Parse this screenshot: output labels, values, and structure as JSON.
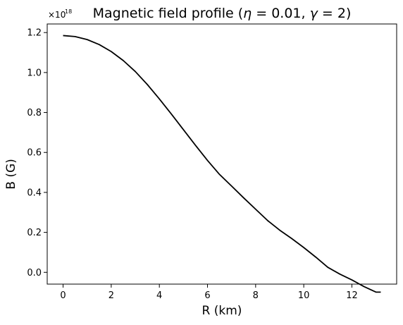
{
  "chart_data": {
    "type": "line",
    "title_prefix": "Magnetic field profile (",
    "title_eta": "η",
    "title_eq1": " = 0.01, ",
    "title_gamma": "γ",
    "title_eq2": " = 2)",
    "xlabel": "R (km)",
    "ylabel": "B (G)",
    "y_offset_base": "×10",
    "y_offset_exp": "18",
    "xlim": [
      -0.66,
      13.86
    ],
    "ylim": [
      -0.059,
      1.243
    ],
    "y_multiplier": 1e+18,
    "xticks": [
      0,
      2,
      4,
      6,
      8,
      10,
      12
    ],
    "yticks": [
      0.0,
      0.2,
      0.4,
      0.6,
      0.8,
      1.0,
      1.2
    ],
    "xtick_labels": [
      "0",
      "2",
      "4",
      "6",
      "8",
      "10",
      "12"
    ],
    "ytick_labels": [
      "0.0",
      "0.2",
      "0.4",
      "0.6",
      "0.8",
      "1.0",
      "1.2"
    ],
    "grid": false,
    "series": [
      {
        "color": "#000000",
        "x": [
          0.0,
          0.5,
          1.0,
          1.5,
          2.0,
          2.5,
          3.0,
          3.5,
          4.0,
          4.5,
          5.0,
          5.5,
          6.0,
          6.5,
          7.0,
          7.5,
          8.0,
          8.5,
          9.0,
          9.5,
          10.0,
          10.5,
          11.0,
          11.5,
          12.0,
          12.5,
          12.8,
          13.0,
          13.2
        ],
        "y": [
          1.185,
          1.18,
          1.165,
          1.14,
          1.105,
          1.06,
          1.005,
          0.94,
          0.868,
          0.792,
          0.714,
          0.636,
          0.56,
          0.49,
          0.432,
          0.373,
          0.316,
          0.259,
          0.211,
          0.169,
          0.124,
          0.076,
          0.025,
          -0.009,
          -0.038,
          -0.071,
          -0.088,
          -0.099,
          -0.099
        ]
      }
    ]
  }
}
